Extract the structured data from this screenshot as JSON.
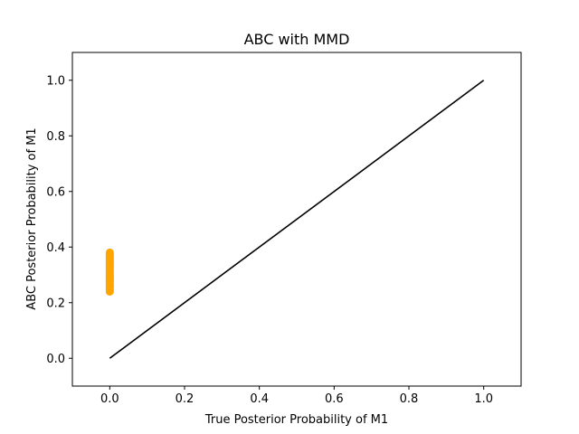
{
  "chart_data": {
    "type": "scatter",
    "title": "ABC with MMD",
    "xlabel": "True Posterior Probability of M1",
    "ylabel": "ABC Posterior Probability of M1",
    "xlim": [
      -0.1,
      1.1
    ],
    "ylim": [
      -0.1,
      1.1
    ],
    "xticks": [
      0.0,
      0.2,
      0.4,
      0.6,
      0.8,
      1.0
    ],
    "yticks": [
      0.0,
      0.2,
      0.4,
      0.6,
      0.8,
      1.0
    ],
    "xtick_labels": [
      "0.0",
      "0.2",
      "0.4",
      "0.6",
      "0.8",
      "1.0"
    ],
    "ytick_labels": [
      "0.0",
      "0.2",
      "0.4",
      "0.6",
      "0.8",
      "1.0"
    ],
    "grid": false,
    "series": [
      {
        "type": "scatter",
        "color": "#ffa500",
        "x": [
          0,
          0,
          0,
          0,
          0,
          0,
          0,
          0,
          0,
          0,
          0,
          0,
          0,
          0,
          0,
          0,
          0,
          0,
          0,
          0,
          0,
          0,
          0,
          0,
          0,
          0,
          0,
          0,
          0,
          0,
          0,
          0
        ],
        "y": [
          0.24,
          0.245,
          0.25,
          0.255,
          0.26,
          0.265,
          0.27,
          0.275,
          0.28,
          0.285,
          0.29,
          0.295,
          0.3,
          0.305,
          0.31,
          0.315,
          0.32,
          0.325,
          0.33,
          0.335,
          0.34,
          0.345,
          0.35,
          0.355,
          0.36,
          0.365,
          0.37,
          0.375,
          0.38,
          0.26,
          0.29,
          0.33
        ]
      },
      {
        "type": "line",
        "color": "#000000",
        "x": [
          0,
          1
        ],
        "y": [
          0,
          1
        ]
      }
    ]
  }
}
